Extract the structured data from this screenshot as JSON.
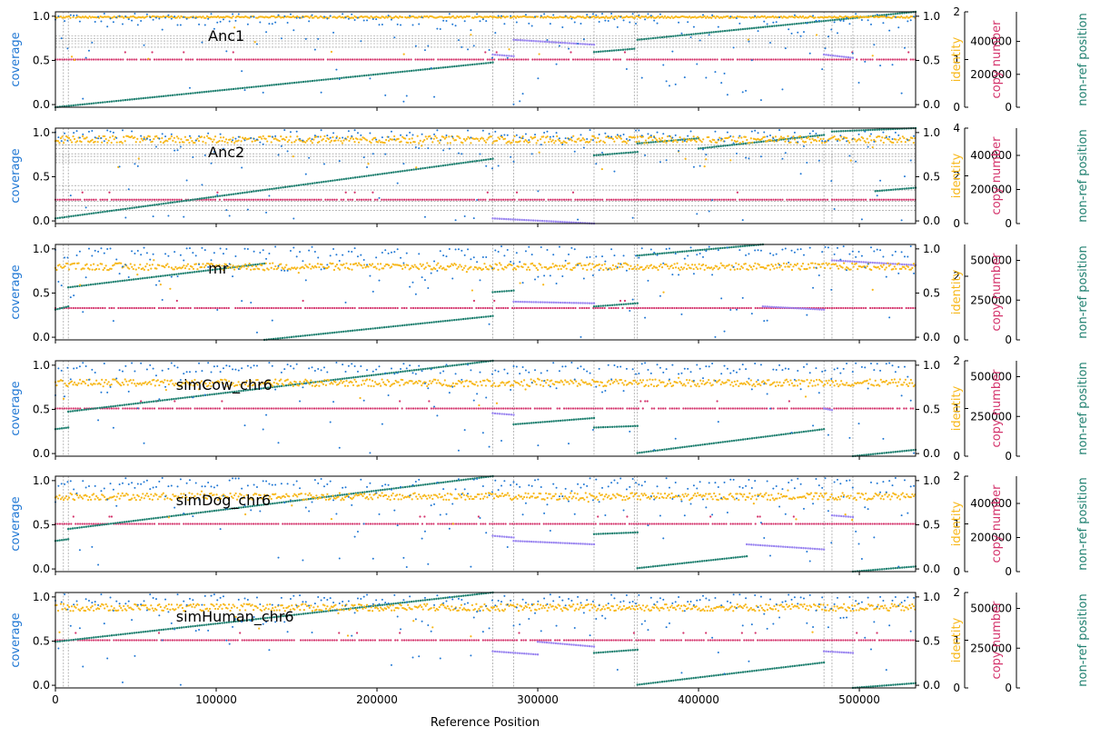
{
  "colors": {
    "coverage": "#1f77d4",
    "identity": "#f7b719",
    "copy_number": "#d4346c",
    "nonref_position": "#1f8070",
    "inverted": "#9a85f0",
    "grid": "#888888",
    "axis": "#000000"
  },
  "axis_labels": {
    "x": "Reference Position",
    "coverage": "coverage",
    "identity": "identity",
    "copy_number": "copy number",
    "nonref": "non-ref position"
  },
  "x_ticks": [
    "0",
    "100000",
    "200000",
    "300000",
    "400000",
    "500000"
  ],
  "chart_data": [
    {
      "type": "scatter",
      "name": "Anc1",
      "xlim": [
        0,
        535000
      ],
      "coverage_ylim": [
        -0.03,
        1.05
      ],
      "coverage_ticks": [
        "0.0",
        "0.5",
        "1.0"
      ],
      "identity_ticks": [
        "0.0",
        "0.5",
        "1.0"
      ],
      "copy_number_ylim": [
        0,
        2
      ],
      "copy_number_ticks": [
        "0",
        "1",
        "2"
      ],
      "nonref_ylim": [
        0,
        580000
      ],
      "nonref_ticks": [
        "0",
        "200000",
        "400000"
      ],
      "identity_level": 0.99,
      "copy_number_level": 1,
      "hgrid": [
        0.65,
        0.69,
        0.72,
        0.75,
        0.78
      ],
      "vlines": [
        5000,
        8000,
        272000,
        285000,
        335000,
        360000,
        362000,
        478000,
        483000,
        496000
      ],
      "nonref_segments": [
        {
          "x0": 0,
          "x1": 272000,
          "y0": 0,
          "y1": 272000,
          "inverted": false
        },
        {
          "x0": 272000,
          "x1": 285000,
          "y0": 320000,
          "y1": 310000,
          "inverted": true
        },
        {
          "x0": 285000,
          "x1": 335000,
          "y0": 410000,
          "y1": 380000,
          "inverted": true
        },
        {
          "x0": 335000,
          "x1": 360000,
          "y0": 335000,
          "y1": 355000,
          "inverted": false
        },
        {
          "x0": 362000,
          "x1": 535000,
          "y0": 410000,
          "y1": 580000,
          "inverted": false
        },
        {
          "x0": 478000,
          "x1": 496000,
          "y0": 320000,
          "y1": 300000,
          "inverted": true
        }
      ]
    },
    {
      "type": "scatter",
      "name": "Anc2",
      "xlim": [
        0,
        535000
      ],
      "coverage_ylim": [
        -0.03,
        1.05
      ],
      "coverage_ticks": [
        "0.0",
        "0.5",
        "1.0"
      ],
      "identity_ticks": [
        "0.0",
        "0.5",
        "1.0"
      ],
      "copy_number_ylim": [
        0,
        4
      ],
      "copy_number_ticks": [
        "0",
        "2",
        "4"
      ],
      "nonref_ylim": [
        0,
        560000
      ],
      "nonref_ticks": [
        "0",
        "200000",
        "400000"
      ],
      "identity_level": 0.92,
      "copy_number_level": 1,
      "hgrid": [
        0.12,
        0.17,
        0.22,
        0.35,
        0.4,
        0.66,
        0.69,
        0.73,
        0.76,
        0.82,
        0.86
      ],
      "vlines": [
        5000,
        8000,
        272000,
        285000,
        335000,
        360000,
        362000,
        478000,
        483000,
        496000
      ],
      "nonref_segments": [
        {
          "x0": 0,
          "x1": 272000,
          "y0": 30000,
          "y1": 380000,
          "inverted": false
        },
        {
          "x0": 272000,
          "x1": 335000,
          "y0": 30000,
          "y1": 0,
          "inverted": true
        },
        {
          "x0": 335000,
          "x1": 362000,
          "y0": 400000,
          "y1": 420000,
          "inverted": false
        },
        {
          "x0": 362000,
          "x1": 400000,
          "y0": 470000,
          "y1": 500000,
          "inverted": false
        },
        {
          "x0": 400000,
          "x1": 478000,
          "y0": 440000,
          "y1": 520000,
          "inverted": false
        },
        {
          "x0": 483000,
          "x1": 535000,
          "y0": 540000,
          "y1": 560000,
          "inverted": false
        },
        {
          "x0": 510000,
          "x1": 535000,
          "y0": 190000,
          "y1": 210000,
          "inverted": false
        }
      ]
    },
    {
      "type": "scatter",
      "name": "mr",
      "xlim": [
        0,
        535000
      ],
      "coverage_ylim": [
        -0.03,
        1.05
      ],
      "coverage_ticks": [
        "0.0",
        "0.5",
        "1.0"
      ],
      "identity_ticks": [
        "0.0",
        "0.5",
        "1.0"
      ],
      "copy_number_ylim": [
        0,
        3
      ],
      "copy_number_ticks": [
        "0",
        "2"
      ],
      "nonref_ylim": [
        0,
        600000
      ],
      "nonref_ticks": [
        "0",
        "250000",
        "500000"
      ],
      "identity_level": 0.8,
      "copy_number_level": 1,
      "hgrid": [],
      "vlines": [
        5000,
        8000,
        272000,
        285000,
        335000,
        360000,
        362000,
        478000,
        483000,
        496000
      ],
      "nonref_segments": [
        {
          "x0": 0,
          "x1": 8000,
          "y0": 190000,
          "y1": 210000,
          "inverted": false
        },
        {
          "x0": 8000,
          "x1": 130000,
          "y0": 330000,
          "y1": 480000,
          "inverted": false
        },
        {
          "x0": 130000,
          "x1": 272000,
          "y0": 0,
          "y1": 150000,
          "inverted": false
        },
        {
          "x0": 272000,
          "x1": 285000,
          "y0": 300000,
          "y1": 310000,
          "inverted": false
        },
        {
          "x0": 285000,
          "x1": 335000,
          "y0": 240000,
          "y1": 230000,
          "inverted": true
        },
        {
          "x0": 335000,
          "x1": 362000,
          "y0": 210000,
          "y1": 230000,
          "inverted": false
        },
        {
          "x0": 362000,
          "x1": 440000,
          "y0": 530000,
          "y1": 600000,
          "inverted": false
        },
        {
          "x0": 440000,
          "x1": 478000,
          "y0": 210000,
          "y1": 190000,
          "inverted": true
        },
        {
          "x0": 483000,
          "x1": 535000,
          "y0": 500000,
          "y1": 470000,
          "inverted": true
        }
      ]
    },
    {
      "type": "scatter",
      "name": "simCow_chr6",
      "xlim": [
        0,
        535000
      ],
      "coverage_ylim": [
        -0.03,
        1.05
      ],
      "coverage_ticks": [
        "0.0",
        "0.5",
        "1.0"
      ],
      "identity_ticks": [
        "0.0",
        "0.5",
        "1.0"
      ],
      "copy_number_ylim": [
        0,
        2
      ],
      "copy_number_ticks": [
        "0",
        "1",
        "2"
      ],
      "nonref_ylim": [
        0,
        600000
      ],
      "nonref_ticks": [
        "0",
        "250000",
        "500000"
      ],
      "identity_level": 0.8,
      "copy_number_level": 1,
      "hgrid": [],
      "vlines": [
        5000,
        8000,
        272000,
        285000,
        335000,
        360000,
        362000,
        478000,
        483000,
        496000
      ],
      "nonref_segments": [
        {
          "x0": 0,
          "x1": 8000,
          "y0": 170000,
          "y1": 180000,
          "inverted": false
        },
        {
          "x0": 8000,
          "x1": 272000,
          "y0": 280000,
          "y1": 600000,
          "inverted": false
        },
        {
          "x0": 272000,
          "x1": 285000,
          "y0": 270000,
          "y1": 260000,
          "inverted": true
        },
        {
          "x0": 285000,
          "x1": 335000,
          "y0": 200000,
          "y1": 240000,
          "inverted": false
        },
        {
          "x0": 335000,
          "x1": 362000,
          "y0": 180000,
          "y1": 190000,
          "inverted": false
        },
        {
          "x0": 362000,
          "x1": 478000,
          "y0": 20000,
          "y1": 170000,
          "inverted": false
        },
        {
          "x0": 478000,
          "x1": 483000,
          "y0": 300000,
          "y1": 290000,
          "inverted": true
        },
        {
          "x0": 496000,
          "x1": 535000,
          "y0": 0,
          "y1": 40000,
          "inverted": false
        }
      ]
    },
    {
      "type": "scatter",
      "name": "simDog_chr6",
      "xlim": [
        0,
        535000
      ],
      "coverage_ylim": [
        -0.03,
        1.05
      ],
      "coverage_ticks": [
        "0.0",
        "0.5",
        "1.0"
      ],
      "identity_ticks": [
        "0.0",
        "0.5",
        "1.0"
      ],
      "copy_number_ylim": [
        0,
        2
      ],
      "copy_number_ticks": [
        "0",
        "1",
        "2"
      ],
      "nonref_ylim": [
        0,
        560000
      ],
      "nonref_ticks": [
        "0",
        "200000",
        "400000"
      ],
      "identity_level": 0.82,
      "copy_number_level": 1,
      "hgrid": [],
      "vlines": [
        5000,
        8000,
        272000,
        285000,
        335000,
        360000,
        362000,
        478000,
        483000,
        496000
      ],
      "nonref_segments": [
        {
          "x0": 0,
          "x1": 8000,
          "y0": 180000,
          "y1": 190000,
          "inverted": false
        },
        {
          "x0": 8000,
          "x1": 272000,
          "y0": 250000,
          "y1": 560000,
          "inverted": false
        },
        {
          "x0": 272000,
          "x1": 285000,
          "y0": 210000,
          "y1": 200000,
          "inverted": true
        },
        {
          "x0": 285000,
          "x1": 335000,
          "y0": 180000,
          "y1": 160000,
          "inverted": true
        },
        {
          "x0": 335000,
          "x1": 362000,
          "y0": 220000,
          "y1": 230000,
          "inverted": false
        },
        {
          "x0": 362000,
          "x1": 430000,
          "y0": 20000,
          "y1": 90000,
          "inverted": false
        },
        {
          "x0": 430000,
          "x1": 478000,
          "y0": 160000,
          "y1": 130000,
          "inverted": true
        },
        {
          "x0": 483000,
          "x1": 496000,
          "y0": 330000,
          "y1": 320000,
          "inverted": true
        },
        {
          "x0": 496000,
          "x1": 535000,
          "y0": 0,
          "y1": 30000,
          "inverted": false
        }
      ]
    },
    {
      "type": "scatter",
      "name": "simHuman_chr6",
      "xlim": [
        0,
        535000
      ],
      "coverage_ylim": [
        -0.03,
        1.05
      ],
      "coverage_ticks": [
        "0.0",
        "0.5",
        "1.0"
      ],
      "identity_ticks": [
        "0.0",
        "0.5",
        "1.0"
      ],
      "copy_number_ylim": [
        0,
        2
      ],
      "copy_number_ticks": [
        "0",
        "1",
        "2"
      ],
      "nonref_ylim": [
        0,
        600000
      ],
      "nonref_ticks": [
        "0",
        "250000",
        "500000"
      ],
      "identity_level": 0.88,
      "copy_number_level": 1,
      "hgrid": [],
      "vlines": [
        5000,
        8000,
        272000,
        285000,
        335000,
        360000,
        362000,
        478000,
        483000,
        496000
      ],
      "nonref_segments": [
        {
          "x0": 0,
          "x1": 272000,
          "y0": 290000,
          "y1": 600000,
          "inverted": false
        },
        {
          "x0": 272000,
          "x1": 300000,
          "y0": 230000,
          "y1": 210000,
          "inverted": true
        },
        {
          "x0": 300000,
          "x1": 335000,
          "y0": 290000,
          "y1": 260000,
          "inverted": true
        },
        {
          "x0": 335000,
          "x1": 362000,
          "y0": 220000,
          "y1": 240000,
          "inverted": false
        },
        {
          "x0": 362000,
          "x1": 478000,
          "y0": 20000,
          "y1": 160000,
          "inverted": false
        },
        {
          "x0": 478000,
          "x1": 496000,
          "y0": 230000,
          "y1": 220000,
          "inverted": true
        },
        {
          "x0": 496000,
          "x1": 535000,
          "y0": 0,
          "y1": 30000,
          "inverted": false
        }
      ]
    }
  ]
}
